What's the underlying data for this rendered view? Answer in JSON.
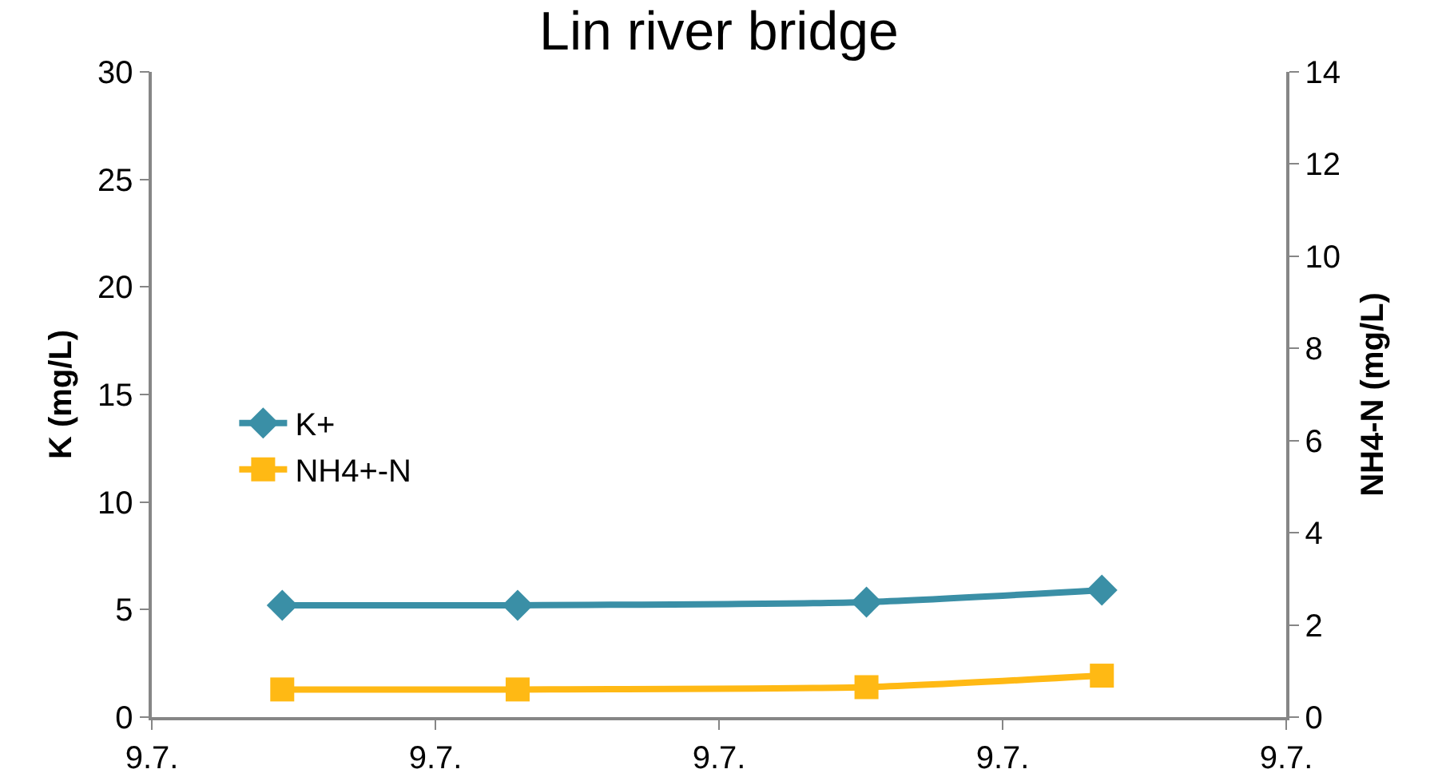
{
  "chart_data": {
    "type": "line",
    "title": "Lin river bridge",
    "ylabel": "K (mg/L)",
    "y2label": "NH4-N (mg/L)",
    "xlim": [
      "--07-09T00:00",
      "--07-09T20:00"
    ],
    "xticks": [
      {
        "value": "--07-09T00:00",
        "label": "9.7."
      },
      {
        "value": "--07-09T05:00",
        "label": "9.7."
      },
      {
        "value": "--07-09T10:00",
        "label": "9.7."
      },
      {
        "value": "--07-09T15:00",
        "label": "9.7."
      },
      {
        "value": "--07-09T20:00",
        "label": "9.7."
      }
    ],
    "x": [
      "--07-09T02:18",
      "--07-09T06:27",
      "--07-09T12:36",
      "--07-09T16:45"
    ],
    "ylim": [
      0,
      30
    ],
    "yticks": [
      0,
      5,
      10,
      15,
      20,
      25,
      30
    ],
    "y2lim": [
      0,
      14
    ],
    "y2ticks": [
      0,
      2,
      4,
      6,
      8,
      10,
      12,
      14
    ],
    "series": [
      {
        "name": "K+",
        "color": "#3a8fa6",
        "values": [
          5.2,
          5.2,
          5.35,
          5.9
        ],
        "marker": "diamond"
      },
      {
        "name": "NH4+-N",
        "color": "#ffb914",
        "values": [
          0.6,
          0.6,
          0.65,
          0.9
        ],
        "marker": "square",
        "axis": "y2"
      }
    ],
    "grid": false,
    "legend": "left"
  }
}
